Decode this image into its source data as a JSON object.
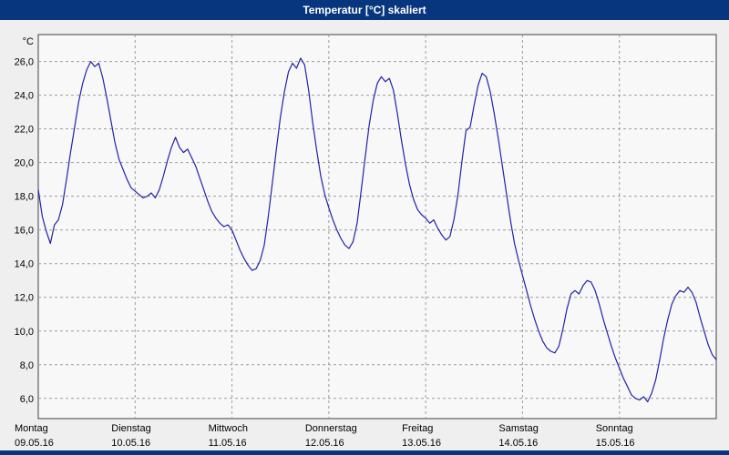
{
  "window": {
    "title": "Temperatur [°C] skaliert"
  },
  "colors": {
    "titlebar": "#08367e",
    "title_text": "#ffffff",
    "bottom_bar": "#08367e",
    "panel_bg": "#efefef",
    "plot_bg": "#f8f8f8",
    "grid": "#9c9c9c",
    "border": "#404040",
    "line": "#2222aa",
    "label_text": "#000000"
  },
  "chart_data": {
    "type": "line",
    "title": "Temperatur [°C] skaliert",
    "ylabel": "°C",
    "xlabel": "",
    "ylim": [
      4.8,
      27.6
    ],
    "ytick_values": [
      26,
      24,
      22,
      20,
      18,
      16,
      14,
      12,
      10,
      8,
      6
    ],
    "ytick_labels": [
      "26,0",
      "24,0",
      "22,0",
      "20,0",
      "18,0",
      "16,0",
      "14,0",
      "12,0",
      "10,0",
      "8,0",
      "6,0"
    ],
    "grid": "dashed",
    "legend_position": "none",
    "x_unit": "hours",
    "hours_per_day": 24,
    "x_range_hours": [
      0,
      168
    ],
    "days": [
      {
        "name": "Montag",
        "date": "09.05.16"
      },
      {
        "name": "Dienstag",
        "date": "10.05.16"
      },
      {
        "name": "Mittwoch",
        "date": "11.05.16"
      },
      {
        "name": "Donnerstag",
        "date": "12.05.16"
      },
      {
        "name": "Freitag",
        "date": "13.05.16"
      },
      {
        "name": "Samstag",
        "date": "14.05.16"
      },
      {
        "name": "Sonntag",
        "date": "15.05.16"
      }
    ],
    "series": [
      {
        "name": "Temperatur",
        "step_hours": 1,
        "values": [
          18.4,
          16.8,
          15.9,
          15.2,
          16.3,
          16.6,
          17.5,
          19.0,
          20.6,
          22.1,
          23.6,
          24.7,
          25.5,
          26.0,
          25.7,
          25.9,
          25.0,
          23.8,
          22.5,
          21.2,
          20.2,
          19.6,
          19.0,
          18.5,
          18.3,
          18.1,
          17.9,
          18.0,
          18.2,
          17.9,
          18.4,
          19.2,
          20.1,
          20.9,
          21.5,
          20.9,
          20.6,
          20.8,
          20.3,
          19.8,
          19.1,
          18.4,
          17.7,
          17.1,
          16.7,
          16.4,
          16.2,
          16.3,
          16.0,
          15.4,
          14.8,
          14.3,
          13.9,
          13.6,
          13.7,
          14.2,
          15.1,
          16.8,
          18.8,
          20.8,
          22.7,
          24.2,
          25.4,
          25.9,
          25.6,
          26.2,
          25.8,
          24.3,
          22.4,
          20.7,
          19.2,
          18.1,
          17.3,
          16.6,
          16.0,
          15.5,
          15.1,
          14.9,
          15.3,
          16.4,
          18.3,
          20.3,
          22.2,
          23.7,
          24.7,
          25.1,
          24.8,
          25.0,
          24.3,
          22.9,
          21.3,
          19.9,
          18.7,
          17.8,
          17.2,
          16.9,
          16.7,
          16.4,
          16.6,
          16.1,
          15.7,
          15.4,
          15.6,
          16.6,
          18.1,
          20.1,
          21.9,
          22.1,
          23.4,
          24.6,
          25.3,
          25.1,
          24.2,
          22.9,
          21.4,
          19.8,
          18.2,
          16.6,
          15.2,
          14.2,
          13.3,
          12.4,
          11.5,
          10.7,
          10.0,
          9.4,
          9.0,
          8.8,
          8.7,
          9.1,
          10.1,
          11.3,
          12.2,
          12.4,
          12.2,
          12.7,
          13.0,
          12.9,
          12.4,
          11.6,
          10.7,
          9.9,
          9.1,
          8.4,
          7.8,
          7.2,
          6.7,
          6.2,
          6.0,
          5.9,
          6.1,
          5.8,
          6.3,
          7.1,
          8.3,
          9.6,
          10.7,
          11.6,
          12.1,
          12.4,
          12.3,
          12.6,
          12.3,
          11.7,
          10.8,
          10.0,
          9.2,
          8.6,
          8.3
        ]
      }
    ]
  }
}
